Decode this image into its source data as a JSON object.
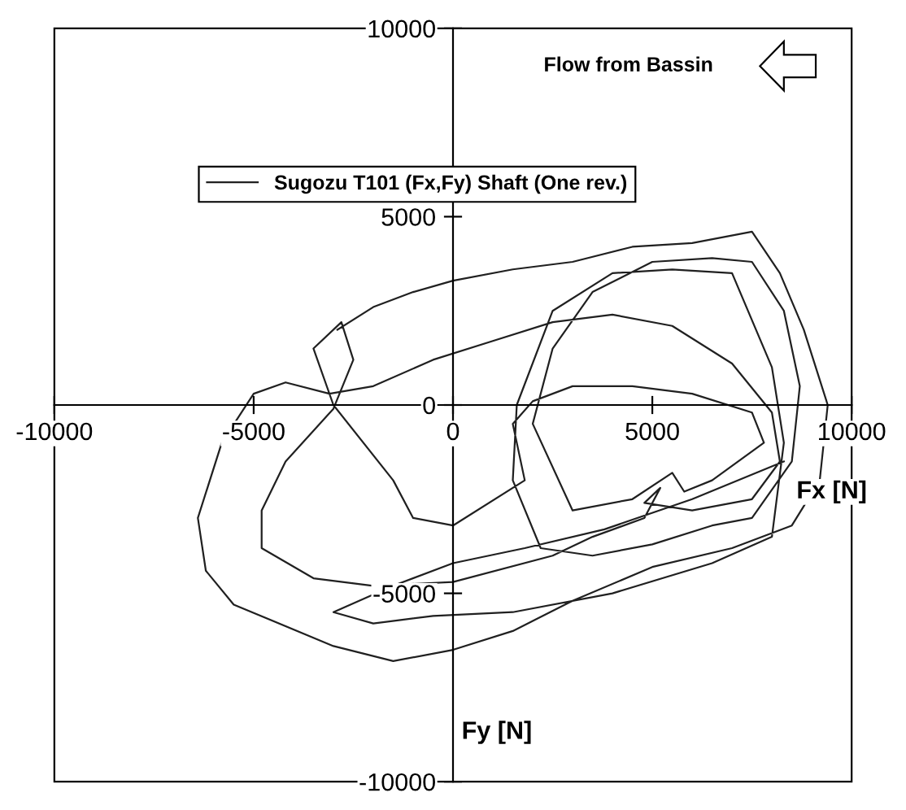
{
  "chart_data": {
    "type": "line",
    "xlabel": "Fx [N]",
    "ylabel": "Fy [N]",
    "annotations": [
      "Flow from Bassin"
    ],
    "xlim": [
      -10000,
      10000
    ],
    "ylim": [
      -10000,
      10000
    ],
    "xticks": [
      -10000,
      -5000,
      0,
      5000,
      10000
    ],
    "yticks": [
      -10000,
      -5000,
      0,
      5000,
      10000
    ],
    "grid": false,
    "legend": "top",
    "marker": "none",
    "line_style": "solid",
    "series": [
      {
        "name": "Sugozu T101 (Fx,Fy) Shaft (One rev.)",
        "color": "#202020",
        "x": [
          -2900,
          -2000,
          -1000,
          0,
          1500,
          3000,
          4500,
          6000,
          7500,
          8200,
          8800,
          9400,
          9200,
          8500,
          7000,
          5000,
          3000,
          1500,
          0,
          -1500,
          -3000,
          -5500,
          -6200,
          -6400,
          -5800,
          -5000,
          -4200,
          -3100,
          -2000,
          -500,
          1000,
          2500,
          4000,
          5500,
          7000,
          8000,
          8200,
          7500,
          6000,
          4800,
          5200,
          4800,
          3500,
          2500,
          0,
          -2000,
          -3500,
          -4800,
          -4800,
          -4200,
          -3000,
          -2500,
          -2800,
          -3500,
          -3000,
          -1500,
          -1000,
          0,
          1800,
          1500,
          2000,
          3000,
          4500,
          6000,
          7500,
          7800,
          6500,
          5800,
          5500,
          4500,
          3000,
          2000,
          2500,
          3500,
          5000,
          6500,
          7500,
          8300,
          8700,
          8500,
          7500,
          6500,
          5000,
          3500,
          2200,
          1500,
          1600,
          2500,
          4000,
          5500,
          7000,
          8000,
          8300,
          8000,
          6500,
          4000,
          1500,
          -500,
          -2000,
          -3000,
          -1500,
          0,
          1800,
          3800,
          6000,
          8300
        ],
        "values": [
          2000,
          2600,
          3000,
          3300,
          3600,
          3800,
          4200,
          4300,
          4600,
          3500,
          2000,
          0,
          -2000,
          -3200,
          -3800,
          -4300,
          -5200,
          -6000,
          -6500,
          -6800,
          -6400,
          -5300,
          -4400,
          -3000,
          -1000,
          300,
          600,
          300,
          500,
          1200,
          1700,
          2200,
          2400,
          2100,
          1100,
          -200,
          -1500,
          -2500,
          -2800,
          -2600,
          -2200,
          -3000,
          -3500,
          -4000,
          -4700,
          -4800,
          -4600,
          -3800,
          -2800,
          -1500,
          -100,
          1200,
          2200,
          1500,
          0,
          -2000,
          -3000,
          -3200,
          -2000,
          -500,
          100,
          500,
          500,
          300,
          -200,
          -1000,
          -2000,
          -2300,
          -1800,
          -2500,
          -2800,
          -500,
          1500,
          3000,
          3800,
          3900,
          3800,
          2500,
          500,
          -1500,
          -3000,
          -3200,
          -3700,
          -4000,
          -3800,
          -2000,
          0,
          2500,
          3500,
          3600,
          3500,
          1000,
          -1000,
          -3500,
          -4200,
          -5000,
          -5500,
          -5600,
          -5800,
          -5500,
          -4800,
          -4200,
          -3800,
          -3300,
          -2500,
          -1500
        ]
      }
    ]
  }
}
